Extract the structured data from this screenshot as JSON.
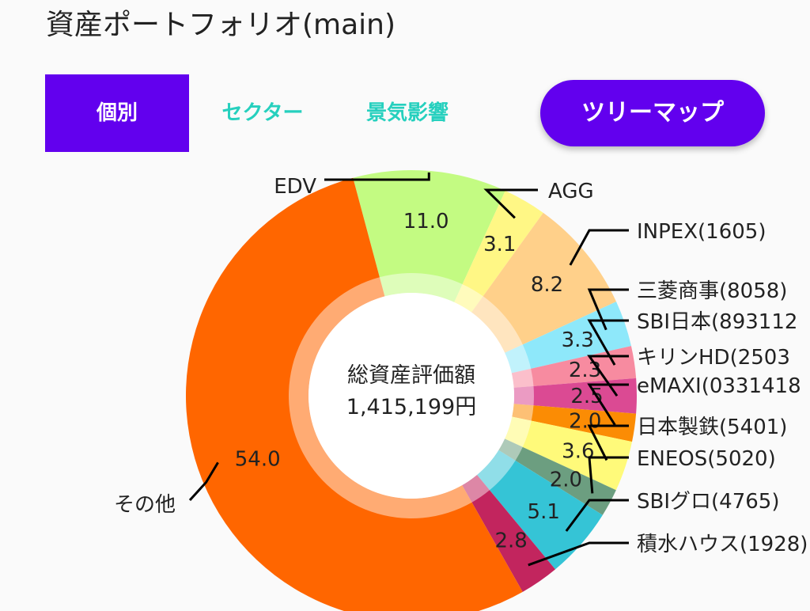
{
  "header": {
    "title": "資産ポートフォリオ(main)"
  },
  "tabs": [
    {
      "label": "個別",
      "active": true
    },
    {
      "label": "セクター",
      "active": false
    },
    {
      "label": "景気影響",
      "active": false
    }
  ],
  "treemap_button": {
    "label": "ツリーマップ"
  },
  "center": {
    "label": "総資産評価額",
    "value": "1,415,199円"
  },
  "colors": {
    "accent": "#6200ee",
    "tab_text": "#26d0be"
  },
  "chart_data": {
    "type": "pie",
    "hole": true,
    "start": "top, clockwise from EDV",
    "slices": [
      {
        "label": "EDV",
        "value": 11.0,
        "display": "11.0",
        "color": "#c3fb82"
      },
      {
        "label": "AGG",
        "value": 3.1,
        "display": "3.1",
        "color": "#fff785"
      },
      {
        "label": "INPEX(1605)",
        "value": 8.2,
        "display": "8.2",
        "color": "#ffd08a"
      },
      {
        "label": "三菱商事(8058)",
        "value": 3.3,
        "display": "3.3",
        "color": "#8ee8fa"
      },
      {
        "label": "SBI日本(893112",
        "value": 2.3,
        "display": "2.3",
        "color": "#f78ba0"
      },
      {
        "label": "キリンHD(2503",
        "value": 2.5,
        "display": "2.5",
        "color": "#db4a93"
      },
      {
        "label": "eMAXI(0331418",
        "value": 2.0,
        "display": "2.0",
        "color": "#fb8c04"
      },
      {
        "label": "日本製鉄(5401)",
        "value": 3.6,
        "display": "3.6",
        "color": "#fffa7a"
      },
      {
        "label": "ENEOS(5020)",
        "value": 2.0,
        "display": "2.0",
        "color": "#6c9e80"
      },
      {
        "label": "SBIグロ(4765)",
        "value": 5.1,
        "display": "5.1",
        "color": "#35c4d6"
      },
      {
        "label": "積水ハウス(1928)",
        "value": 2.8,
        "display": "2.8",
        "color": "#c2255e"
      },
      {
        "label": "その他",
        "value": 54.0,
        "display": "54.0",
        "color": "#ff6600"
      }
    ]
  }
}
